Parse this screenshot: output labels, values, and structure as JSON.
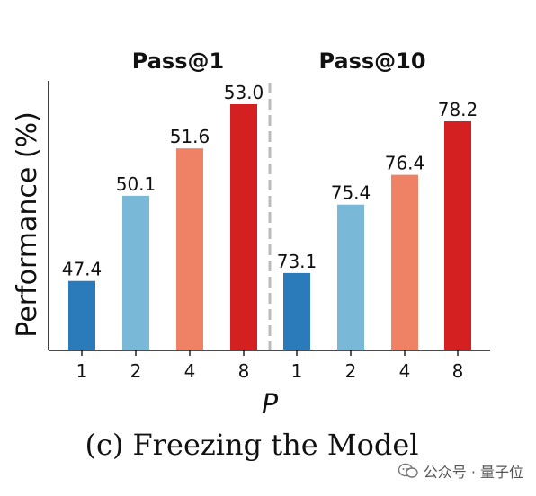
{
  "chart_data": {
    "type": "bar",
    "panels": [
      {
        "title": "Pass@1",
        "categories": [
          "1",
          "2",
          "4",
          "8"
        ],
        "values": [
          47.4,
          50.1,
          51.6,
          53.0
        ]
      },
      {
        "title": "Pass@10",
        "categories": [
          "1",
          "2",
          "4",
          "8"
        ],
        "values": [
          73.1,
          75.4,
          76.4,
          78.2
        ]
      }
    ],
    "ylabel": "Performance (%)",
    "xlabel": "P",
    "bar_colors": [
      "#2b7bba",
      "#7ab8d8",
      "#ef8264",
      "#d42020"
    ],
    "grid": false,
    "value_labels": true
  },
  "caption": "(c) Freezing the Model",
  "watermark": "公众号 · 量子位"
}
